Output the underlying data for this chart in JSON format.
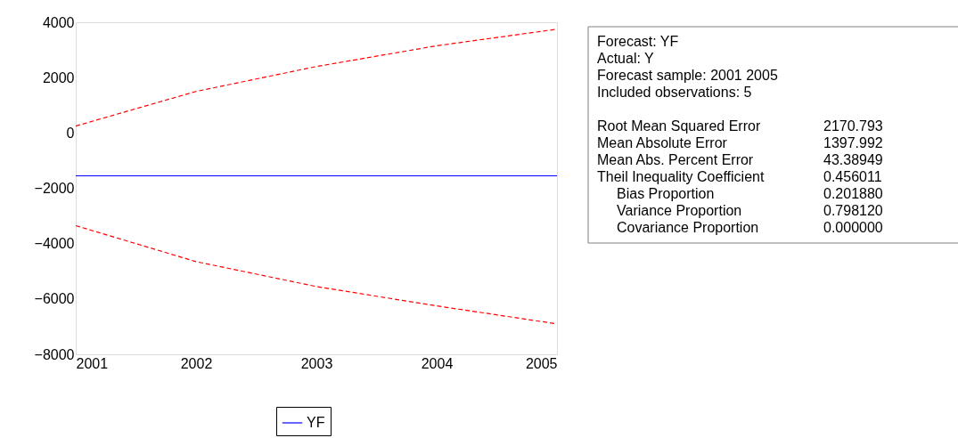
{
  "chart_data": {
    "type": "line",
    "x": [
      2001,
      2002,
      2003,
      2004,
      2005
    ],
    "series": [
      {
        "name": "YF",
        "color": "#0000ff",
        "values": [
          -1550,
          -1550,
          -1550,
          -1550,
          -1550
        ],
        "line_style": "solid"
      },
      {
        "color": "#ff0000",
        "values": [
          250,
          1500,
          2400,
          3150,
          3750
        ],
        "line_style": "dashed"
      },
      {
        "color": "#ff0000",
        "values": [
          -3350,
          -4650,
          -5550,
          -6250,
          -6900
        ],
        "line_style": "dashed"
      }
    ],
    "xlim": [
      2001,
      2005
    ],
    "xticks": [
      2001,
      2002,
      2003,
      2004,
      2005
    ],
    "ylim": [
      -8000,
      4000
    ],
    "yticks": [
      -8000,
      -6000,
      -4000,
      -2000,
      0,
      2000,
      4000
    ],
    "legend": "bottom",
    "annotations": [
      "Forecast: YF",
      "Actual: Y",
      "Forecast sample: 2001 2005",
      "Included observations: 5",
      "Root Mean Squared Error",
      "Mean Absolute Error",
      "Mean Abs. Percent Error",
      "Theil Inequality Coefficient",
      "Bias Proportion",
      "Variance Proportion",
      "Covariance Proportion",
      "2170.793",
      "1397.992",
      "43.38949",
      "0.456011",
      "0.201880",
      "0.798120",
      "0.000000"
    ]
  }
}
